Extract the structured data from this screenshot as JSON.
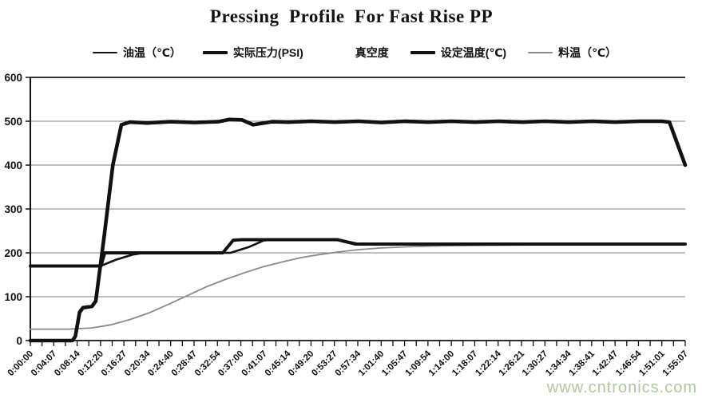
{
  "watermark_text": "www.cntronics.com",
  "chart_data": {
    "type": "line",
    "title": "Pressing  Profile  For Fast Rise PP",
    "xlabel": "",
    "ylabel": "",
    "grid": true,
    "legend_position": "top",
    "x_axis": {
      "unit": "time (h:mm:ss)",
      "total_seconds": 6907,
      "minor_ticks": 57,
      "labels": [
        "0:00:00",
        "0:04:07",
        "0:08:14",
        "0:12:20",
        "0:16:27",
        "0:20:34",
        "0:24:40",
        "0:28:47",
        "0:32:54",
        "0:37:00",
        "0:41:07",
        "0:45:14",
        "0:49:20",
        "0:53:27",
        "0:57:34",
        "1:01:40",
        "1:05:47",
        "1:09:54",
        "1:14:00",
        "1:18:07",
        "1:22:14",
        "1:26:21",
        "1:30:27",
        "1:34:34",
        "1:38:41",
        "1:42:47",
        "1:46:54",
        "1:51:01",
        "1:55:07"
      ]
    },
    "y_axis": {
      "min": 0,
      "max": 600,
      "step": 100,
      "ticks": [
        0,
        100,
        200,
        300,
        400,
        500,
        600
      ]
    },
    "series": [
      {
        "key": "oil-temp",
        "name": "油温（℃）",
        "color": "#111111",
        "width": 2.6,
        "visible": true,
        "points": [
          [
            0,
            170
          ],
          [
            740,
            170
          ],
          [
            900,
            184
          ],
          [
            1080,
            196
          ],
          [
            1200,
            200
          ],
          [
            2110,
            200
          ],
          [
            2300,
            213
          ],
          [
            2460,
            228
          ],
          [
            2560,
            230
          ],
          [
            3240,
            230
          ],
          [
            3450,
            221
          ],
          [
            3900,
            220
          ],
          [
            6907,
            220
          ]
        ]
      },
      {
        "key": "actual-pressure",
        "name": "实际压力(PSI)",
        "color": "#111111",
        "width": 4.6,
        "visible": true,
        "points": [
          [
            0,
            0
          ],
          [
            445,
            0
          ],
          [
            475,
            10
          ],
          [
            520,
            65
          ],
          [
            555,
            75
          ],
          [
            650,
            78
          ],
          [
            690,
            90
          ],
          [
            780,
            240
          ],
          [
            870,
            400
          ],
          [
            960,
            492
          ],
          [
            1050,
            498
          ],
          [
            1230,
            496
          ],
          [
            1480,
            499
          ],
          [
            1730,
            497
          ],
          [
            1980,
            499
          ],
          [
            2100,
            504
          ],
          [
            2230,
            503
          ],
          [
            2350,
            492
          ],
          [
            2550,
            499
          ],
          [
            2720,
            498
          ],
          [
            2960,
            500
          ],
          [
            3210,
            498
          ],
          [
            3460,
            500
          ],
          [
            3700,
            497
          ],
          [
            3950,
            500
          ],
          [
            4200,
            498
          ],
          [
            4440,
            500
          ],
          [
            4690,
            498
          ],
          [
            4940,
            500
          ],
          [
            5190,
            498
          ],
          [
            5430,
            500
          ],
          [
            5680,
            498
          ],
          [
            5930,
            500
          ],
          [
            6170,
            498
          ],
          [
            6420,
            500
          ],
          [
            6660,
            500
          ],
          [
            6740,
            498
          ],
          [
            6907,
            400
          ]
        ]
      },
      {
        "key": "vacuum",
        "name": "真空度",
        "color": "#ffffff",
        "width": 2,
        "visible": false,
        "points": []
      },
      {
        "key": "set-temp",
        "name": "设定温度(℃)",
        "color": "#111111",
        "width": 4,
        "visible": true,
        "points": [
          [
            0,
            170
          ],
          [
            745,
            170
          ],
          [
            785,
            200
          ],
          [
            2030,
            200
          ],
          [
            2140,
            229
          ],
          [
            2230,
            230
          ],
          [
            3240,
            230
          ],
          [
            3430,
            220
          ],
          [
            6907,
            220
          ]
        ]
      },
      {
        "key": "material-temp",
        "name": "料温（℃）",
        "color": "#8a8a8a",
        "width": 1.8,
        "visible": true,
        "points": [
          [
            0,
            26
          ],
          [
            400,
            26
          ],
          [
            650,
            29
          ],
          [
            850,
            36
          ],
          [
            1050,
            48
          ],
          [
            1250,
            63
          ],
          [
            1450,
            82
          ],
          [
            1650,
            102
          ],
          [
            1850,
            122
          ],
          [
            2050,
            139
          ],
          [
            2250,
            154
          ],
          [
            2450,
            168
          ],
          [
            2650,
            179
          ],
          [
            2850,
            189
          ],
          [
            3050,
            196
          ],
          [
            3250,
            202
          ],
          [
            3450,
            207
          ],
          [
            3700,
            211
          ],
          [
            4000,
            214
          ],
          [
            4350,
            216
          ],
          [
            4750,
            217
          ],
          [
            5300,
            218
          ],
          [
            5900,
            218
          ],
          [
            6450,
            219
          ],
          [
            6907,
            219
          ]
        ]
      }
    ]
  }
}
